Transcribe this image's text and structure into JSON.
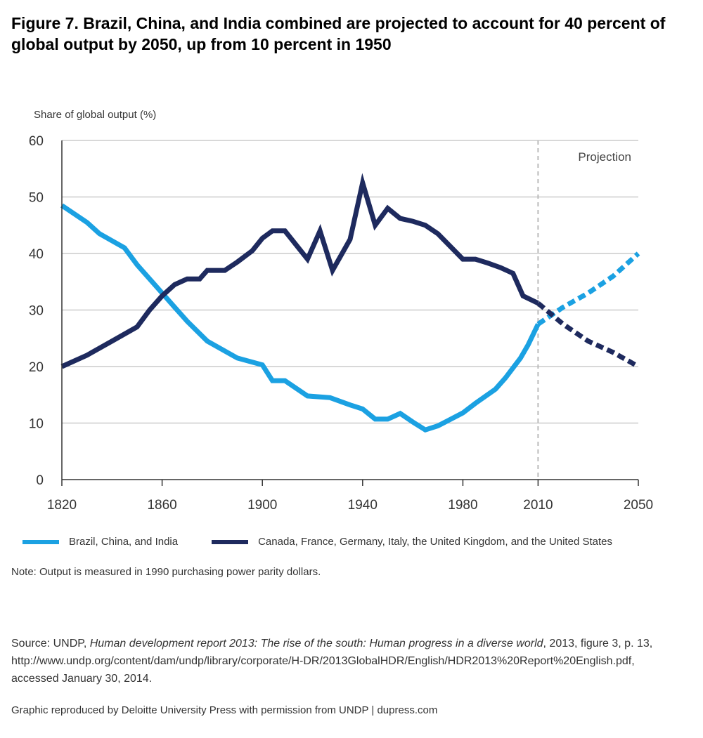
{
  "title": {
    "label": "Figure 7.",
    "text": "Brazil, China, and India combined are projected to account for 40 percent of global output by 2050, up from 10 percent in 1950"
  },
  "chart_data": {
    "type": "line",
    "ylabel": "Share of global output (%)",
    "ylim": [
      0,
      60
    ],
    "yticks": [
      0,
      10,
      20,
      30,
      40,
      50,
      60
    ],
    "xlim": [
      1820,
      2050
    ],
    "xticks": [
      1820,
      1860,
      1900,
      1940,
      1980,
      2010,
      2050
    ],
    "x_tick_labels": [
      "1820",
      "1860",
      "1900",
      "1940",
      "1980",
      "2010",
      "2050"
    ],
    "grid": true,
    "projection_label": "Projection",
    "projection_start": 2010,
    "colors": {
      "bci": "#1ba1e2",
      "g6": "#1e2a5e",
      "gridline": "#cccccc",
      "projection_line": "#bbbbbb"
    },
    "series": [
      {
        "name": "Brazil, China, and India",
        "key": "bci",
        "x": [
          1820,
          1830,
          1835,
          1845,
          1850,
          1860,
          1865,
          1870,
          1878,
          1890,
          1900,
          1904,
          1909,
          1918,
          1927,
          1935,
          1940,
          1945,
          1950,
          1955,
          1960,
          1965,
          1970,
          1980,
          1985,
          1993,
          1997,
          2003,
          2006,
          2010
        ],
        "values": [
          48.5,
          45.5,
          43.5,
          41.0,
          38.0,
          33.0,
          30.5,
          28.0,
          24.5,
          21.5,
          20.3,
          17.5,
          17.5,
          14.8,
          14.5,
          13.2,
          12.5,
          10.7,
          10.7,
          11.7,
          10.2,
          8.8,
          9.5,
          11.8,
          13.5,
          16.0,
          18.0,
          21.5,
          23.8,
          27.5
        ]
      },
      {
        "name": "Bci projection",
        "key": "bci",
        "dashed": true,
        "x": [
          2010,
          2020,
          2030,
          2040,
          2050
        ],
        "values": [
          27.5,
          30.5,
          33.0,
          36.0,
          40.0
        ]
      },
      {
        "name": "Canada, France, Germany, Italy, the United Kingdom, and the United States",
        "key": "g6",
        "x": [
          1820,
          1830,
          1840,
          1850,
          1855,
          1860,
          1865,
          1870,
          1875,
          1878,
          1885,
          1890,
          1896,
          1900,
          1904,
          1909,
          1918,
          1923,
          1928,
          1935,
          1940,
          1945,
          1950,
          1955,
          1960,
          1965,
          1970,
          1980,
          1985,
          1990,
          1995,
          2000,
          2004,
          2010
        ],
        "values": [
          20.0,
          22.0,
          24.5,
          27.0,
          30.0,
          32.5,
          34.5,
          35.5,
          35.5,
          37.0,
          37.0,
          38.5,
          40.5,
          42.7,
          44.0,
          44.0,
          39.0,
          44.0,
          37.0,
          42.5,
          52.5,
          45.0,
          48.0,
          46.2,
          45.7,
          45.0,
          43.5,
          39.0,
          39.0,
          38.3,
          37.5,
          36.5,
          32.5,
          31.2
        ]
      },
      {
        "name": "G6 projection",
        "key": "g6",
        "dashed": true,
        "x": [
          2010,
          2020,
          2030,
          2040,
          2050
        ],
        "values": [
          31.2,
          27.5,
          24.5,
          22.5,
          20.0
        ]
      }
    ]
  },
  "legend": {
    "items": [
      {
        "label": "Brazil, China, and India",
        "color": "#1ba1e2"
      },
      {
        "label": "Canada, France, Germany, Italy, the United Kingdom, and the United States",
        "color": "#1e2a5e"
      }
    ]
  },
  "note": "Note: Output is measured in 1990 purchasing power parity dollars.",
  "source": {
    "prefix": "Source: UNDP, ",
    "title": "Human development report 2013: The rise of the south: Human progress in a diverse world",
    "suffix": ", 2013, figure 3, p. 13, http://www.undp.org/content/dam/undp/library/corporate/H-DR/2013GlobalHDR/English/HDR2013%20Report%20English.pdf, accessed January 30, 2014."
  },
  "credit": "Graphic reproduced by Deloitte University Press with permission from UNDP | dupress.com"
}
